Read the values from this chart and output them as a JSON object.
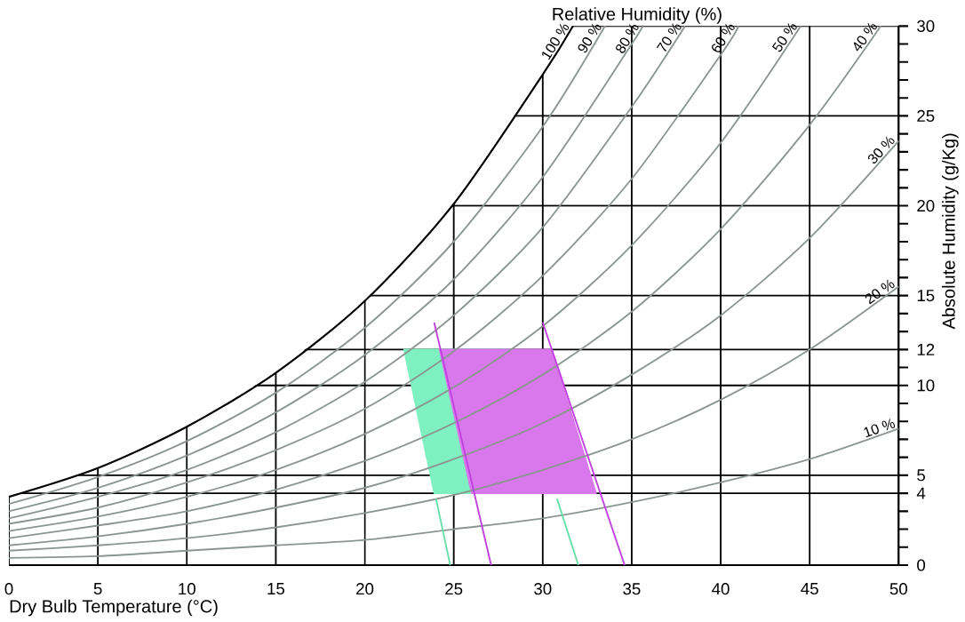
{
  "chart_data": {
    "type": "line",
    "title": "Relative Humidity (%)",
    "xlabel": "Dry Bulb Temperature (°C)",
    "ylabel": "Absolute Humidity (g/Kg)",
    "xlim": [
      0,
      50
    ],
    "ylim": [
      0,
      30
    ],
    "xticks": [
      0,
      5,
      10,
      15,
      20,
      25,
      30,
      35,
      40,
      45,
      50
    ],
    "yticks": [
      0,
      {
        "value": 1,
        "label": null
      },
      {
        "value": 2,
        "label": null
      },
      {
        "value": 3,
        "label": null
      },
      4,
      5,
      {
        "value": 6,
        "label": null
      },
      {
        "value": 7,
        "label": null
      },
      {
        "value": 8,
        "label": null
      },
      {
        "value": 9,
        "label": null
      },
      10,
      {
        "value": 11,
        "label": null
      },
      12,
      {
        "value": 13,
        "label": null
      },
      {
        "value": 14,
        "label": null
      },
      15,
      {
        "value": 16,
        "label": null
      },
      {
        "value": 17,
        "label": null
      },
      {
        "value": 18,
        "label": null
      },
      {
        "value": 19,
        "label": null
      },
      20,
      {
        "value": 21,
        "label": null
      },
      {
        "value": 22,
        "label": null
      },
      {
        "value": 23,
        "label": null
      },
      {
        "value": 24,
        "label": null
      },
      25,
      {
        "value": 26,
        "label": null
      },
      {
        "value": 27,
        "label": null
      },
      {
        "value": 28,
        "label": null
      },
      {
        "value": 29,
        "label": null
      },
      30
    ],
    "grid": true,
    "marker": "none",
    "line_style": "solid",
    "series": [
      {
        "name": "100 %",
        "color": "#000000",
        "x": [
          0,
          5,
          10,
          15,
          20,
          25,
          30,
          31.7
        ],
        "values": [
          3.8,
          5.4,
          7.7,
          10.7,
          14.7,
          20.1,
          27.3,
          30
        ]
      },
      {
        "name": "90 %",
        "color": "#8c9690",
        "x": [
          0,
          5,
          10,
          15,
          20,
          25,
          30,
          33.5
        ],
        "values": [
          3.4,
          4.9,
          6.9,
          9.6,
          13.2,
          18.0,
          24.4,
          30
        ]
      },
      {
        "name": "80 %",
        "color": "#8c9690",
        "x": [
          0,
          5,
          10,
          15,
          20,
          25,
          30,
          35,
          35.6
        ],
        "values": [
          3.0,
          4.3,
          6.1,
          8.5,
          11.7,
          15.9,
          21.6,
          29.0,
          30
        ]
      },
      {
        "name": "70 %",
        "color": "#8c9690",
        "x": [
          0,
          5,
          10,
          15,
          20,
          25,
          30,
          35,
          38
        ],
        "values": [
          2.6,
          3.8,
          5.3,
          7.4,
          10.2,
          13.9,
          18.8,
          25.5,
          30
        ]
      },
      {
        "name": "60 %",
        "color": "#8c9690",
        "x": [
          0,
          5,
          10,
          15,
          20,
          25,
          30,
          35,
          40,
          41
        ],
        "values": [
          2.3,
          3.2,
          4.6,
          6.4,
          8.7,
          11.9,
          16.1,
          21.5,
          28.4,
          30
        ]
      },
      {
        "name": "50 %",
        "color": "#8c9690",
        "x": [
          0,
          5,
          10,
          15,
          20,
          25,
          30,
          35,
          40,
          44.5
        ],
        "values": [
          1.9,
          2.7,
          3.8,
          5.3,
          7.3,
          9.9,
          13.3,
          17.8,
          23.5,
          30
        ]
      },
      {
        "name": "40 %",
        "color": "#8c9690",
        "x": [
          0,
          5,
          10,
          15,
          20,
          25,
          30,
          35,
          40,
          45,
          49
        ],
        "values": [
          1.5,
          2.2,
          3.0,
          4.2,
          5.8,
          7.9,
          10.6,
          14.1,
          18.7,
          24.5,
          30
        ]
      },
      {
        "name": "30 %",
        "color": "#8c9690",
        "x": [
          0,
          5,
          10,
          15,
          20,
          25,
          30,
          35,
          40,
          45,
          50
        ],
        "values": [
          1.1,
          1.6,
          2.3,
          3.2,
          4.3,
          5.9,
          7.9,
          10.6,
          13.9,
          18.2,
          23.6
        ]
      },
      {
        "name": "20 %",
        "color": "#8c9690",
        "x": [
          0,
          5,
          10,
          15,
          20,
          25,
          30,
          35,
          40,
          45,
          50
        ],
        "values": [
          0.8,
          1.1,
          1.5,
          2.1,
          2.9,
          3.9,
          5.3,
          7.0,
          9.2,
          12.0,
          15.5
        ]
      },
      {
        "name": "10 %",
        "color": "#8c9690",
        "x": [
          0,
          5,
          10,
          15,
          20,
          25,
          30,
          35,
          40,
          45,
          50
        ],
        "values": [
          0.4,
          0.5,
          0.8,
          1.1,
          1.4,
          2.0,
          2.6,
          3.5,
          4.6,
          5.9,
          7.6
        ]
      },
      {
        "type": "area",
        "color": "#7ff0bf",
        "x": [
          22.2,
          28.1,
          30.7,
          23.9
        ],
        "values": [
          12,
          12,
          4,
          4
        ]
      },
      {
        "type": "area",
        "color": "#d878ec",
        "x": [
          24.2,
          30.5,
          33.0,
          26.0
        ],
        "values": [
          12,
          12,
          4,
          4
        ]
      },
      {
        "color": "#66e0a8",
        "x": [
          24.8,
          24.0
        ],
        "values": [
          0,
          3.7
        ]
      },
      {
        "color": "#66e0a8",
        "x": [
          32.0,
          30.8
        ],
        "values": [
          0,
          3.7
        ]
      },
      {
        "color": "#c040e0",
        "x": [
          27.1,
          23.9
        ],
        "values": [
          0,
          13.5
        ]
      },
      {
        "color": "#c040e0",
        "x": [
          34.6,
          30.0
        ],
        "values": [
          0,
          13.5
        ]
      }
    ]
  }
}
